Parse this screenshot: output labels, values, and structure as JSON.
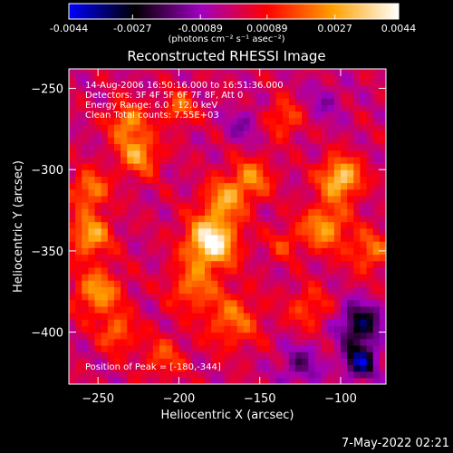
{
  "colorbar": {
    "min": -0.0044,
    "max": 0.0044,
    "ticks": [
      -0.0044,
      -0.0027,
      -0.00089,
      0.00089,
      0.0027,
      0.0044
    ],
    "tick_labels": [
      "-0.0044",
      "-0.0027",
      "-0.00089",
      "0.00089",
      "0.0027",
      "0.0044"
    ],
    "units_label": "(photons cm⁻² s⁻¹ asec⁻²)",
    "colors": [
      "#0000ff",
      "#000000",
      "#a000c0",
      "#ff0000",
      "#ffa000",
      "#ffffff"
    ]
  },
  "chart_data": {
    "type": "heatmap",
    "title": "Reconstructed RHESSI Image",
    "xlabel": "Heliocentric X (arcsec)",
    "ylabel": "Heliocentric Y (arcsec)",
    "xlim": [
      -268,
      -72
    ],
    "ylim": [
      -432,
      -238
    ],
    "x_ticks": [
      -250,
      -200,
      -150,
      -100
    ],
    "y_ticks": [
      -250,
      -300,
      -350,
      -400
    ],
    "annotations": {
      "time_range": "14-Aug-2006 16:50:16.000 to 16:51:36.000",
      "detectors": "Detectors: 3F 4F 5F 6F 7F 8F, Att 0",
      "energy": "Energy Range: 6.0 - 12.0 keV",
      "clean": "Clean     Total counts: 7.55E+03",
      "peak": "Position of Peak = [-180,-344]"
    },
    "peak": {
      "x": -180,
      "y": -344,
      "value": 0.0044
    },
    "sources": [
      {
        "x": -180,
        "y": -344,
        "sigma": 11,
        "amp": 1.0
      },
      {
        "x": -172,
        "y": -318,
        "sigma": 9,
        "amp": 0.55
      },
      {
        "x": -192,
        "y": -372,
        "sigma": 10,
        "amp": 0.45
      },
      {
        "x": -167,
        "y": -392,
        "sigma": 12,
        "amp": 0.45
      },
      {
        "x": -100,
        "y": -305,
        "sigma": 9,
        "amp": 0.8
      },
      {
        "x": -110,
        "y": -335,
        "sigma": 10,
        "amp": 0.6
      },
      {
        "x": -82,
        "y": -350,
        "sigma": 9,
        "amp": 0.45
      },
      {
        "x": -255,
        "y": -340,
        "sigma": 9,
        "amp": 0.65
      },
      {
        "x": -250,
        "y": -375,
        "sigma": 10,
        "amp": 0.6
      },
      {
        "x": -255,
        "y": -312,
        "sigma": 8,
        "amp": 0.55
      },
      {
        "x": -225,
        "y": -290,
        "sigma": 9,
        "amp": 0.6
      },
      {
        "x": -232,
        "y": -270,
        "sigma": 8,
        "amp": 0.55
      },
      {
        "x": -200,
        "y": -262,
        "sigma": 7,
        "amp": 0.45
      },
      {
        "x": -155,
        "y": -305,
        "sigma": 9,
        "amp": 0.5
      },
      {
        "x": -135,
        "y": -268,
        "sigma": 8,
        "amp": 0.4
      },
      {
        "x": -120,
        "y": -385,
        "sigma": 9,
        "amp": 0.35
      },
      {
        "x": -238,
        "y": -400,
        "sigma": 8,
        "amp": 0.45
      },
      {
        "x": -210,
        "y": -415,
        "sigma": 9,
        "amp": 0.35
      },
      {
        "x": -135,
        "y": -345,
        "sigma": 7,
        "amp": 0.3
      },
      {
        "x": -88,
        "y": -395,
        "sigma": 9,
        "amp": -0.7
      },
      {
        "x": -88,
        "y": -418,
        "sigma": 7,
        "amp": -0.8
      },
      {
        "x": -125,
        "y": -420,
        "sigma": 9,
        "amp": -0.35
      },
      {
        "x": -160,
        "y": -272,
        "sigma": 8,
        "amp": -0.25
      },
      {
        "x": -110,
        "y": -258,
        "sigma": 9,
        "amp": -0.2
      }
    ]
  },
  "footer": {
    "timestamp": "7-May-2022 02:21"
  }
}
